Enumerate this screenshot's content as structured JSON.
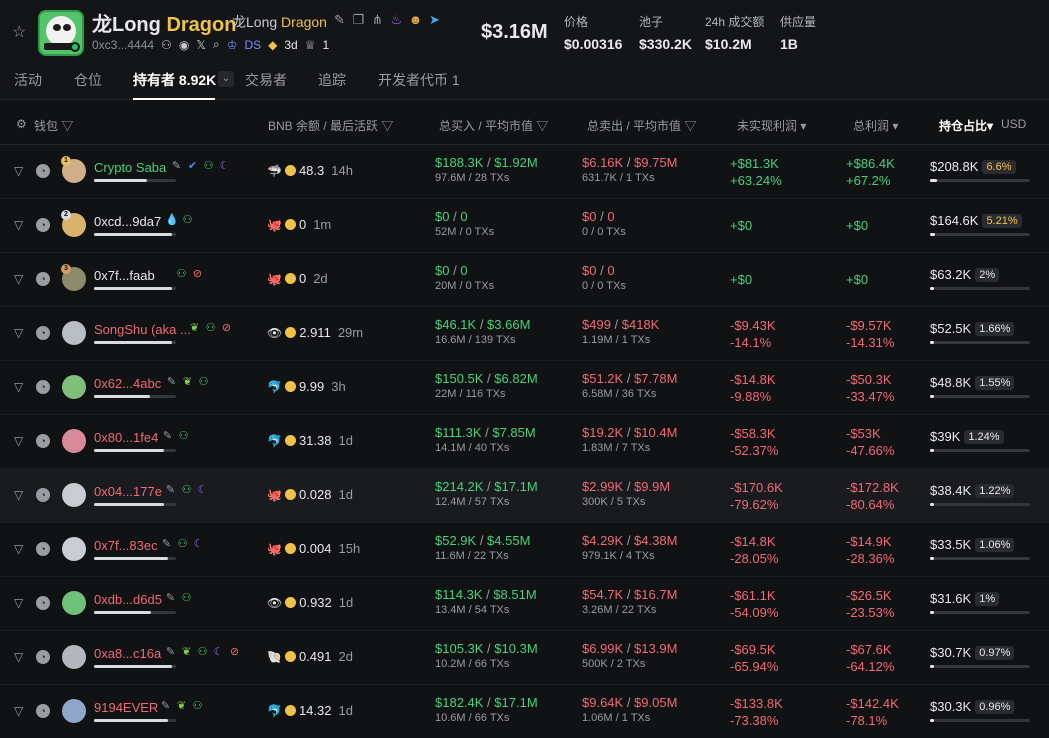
{
  "token": {
    "name_main": "龙Long",
    "symbol_main": "Dragon",
    "name_sub": "龙Long",
    "symbol_sub": "Dragon",
    "address": "0xc3...4444",
    "ds_label": "DS",
    "age": "3d",
    "holder_badge_count": "1",
    "market_cap": "$3.16M"
  },
  "stats": [
    {
      "label": "价格",
      "value": "$0.00316"
    },
    {
      "label": "池子",
      "value": "$330.2K"
    },
    {
      "label": "24h 成交额",
      "value": "$10.2M"
    },
    {
      "label": "供应量",
      "value": "1B"
    }
  ],
  "tabs": {
    "activity": "活动",
    "positions": "仓位",
    "holders": "持有者 8.92K",
    "traders": "交易者",
    "tracking": "追踪",
    "dev_tokens": "开发者代币 1"
  },
  "columns": {
    "wallet": "钱包",
    "bnb": "BNB 余额 / 最后活跃",
    "bought": "总买入 / 平均市值",
    "sold": "总卖出 / 平均市值",
    "unrealized": "未实现利润",
    "pnl": "总利润",
    "holding": "持仓占比",
    "currency": "USD"
  },
  "rows": [
    {
      "name": "Crypto Saba",
      "rank": "1",
      "bnb": "48.3",
      "ago": "14h",
      "buy": "$188.3K",
      "buy_avg": "$1.92M",
      "buy_sub": "97.6M / 28 TXs",
      "sell": "$6.16K",
      "sell_avg": "$9.75M",
      "sell_sub": "631.7K / 1 TXs",
      "unreal": "+$81.3K",
      "unreal_pct": "+63.24%",
      "pnl": "+$86.4K",
      "pnl_pct": "+67.2%",
      "hold_usd": "$208.8K",
      "hold_pct": "6.6%"
    },
    {
      "name": "0xcd...9da7",
      "rank": "2",
      "bnb": "0",
      "ago": "1m",
      "buy": "$0",
      "buy_avg": "0",
      "buy_sub": "52M / 0 TXs",
      "sell": "$0",
      "sell_avg": "0",
      "sell_sub": "0 / 0 TXs",
      "unreal": "+$0",
      "unreal_pct": "",
      "pnl": "+$0",
      "pnl_pct": "",
      "hold_usd": "$164.6K",
      "hold_pct": "5.21%"
    },
    {
      "name": "0x7f...faab",
      "rank": "3",
      "bnb": "0",
      "ago": "2d",
      "buy": "$0",
      "buy_avg": "0",
      "buy_sub": "20M / 0 TXs",
      "sell": "$0",
      "sell_avg": "0",
      "sell_sub": "0 / 0 TXs",
      "unreal": "+$0",
      "unreal_pct": "",
      "pnl": "+$0",
      "pnl_pct": "",
      "hold_usd": "$63.2K",
      "hold_pct": "2%"
    },
    {
      "name": "SongShu (aka ...",
      "rank": "",
      "bnb": "2.911",
      "ago": "29m",
      "buy": "$46.1K",
      "buy_avg": "$3.66M",
      "buy_sub": "16.6M / 139 TXs",
      "sell": "$499",
      "sell_avg": "$418K",
      "sell_sub": "1.19M / 1 TXs",
      "unreal": "-$9.43K",
      "unreal_pct": "-14.1%",
      "pnl": "-$9.57K",
      "pnl_pct": "-14.31%",
      "hold_usd": "$52.5K",
      "hold_pct": "1.66%"
    },
    {
      "name": "0x62...4abc",
      "rank": "",
      "bnb": "9.99",
      "ago": "3h",
      "buy": "$150.5K",
      "buy_avg": "$6.82M",
      "buy_sub": "22M / 116 TXs",
      "sell": "$51.2K",
      "sell_avg": "$7.78M",
      "sell_sub": "6.58M / 36 TXs",
      "unreal": "-$14.8K",
      "unreal_pct": "-9.88%",
      "pnl": "-$50.3K",
      "pnl_pct": "-33.47%",
      "hold_usd": "$48.8K",
      "hold_pct": "1.55%"
    },
    {
      "name": "0x80...1fe4",
      "rank": "",
      "bnb": "31.38",
      "ago": "1d",
      "buy": "$111.3K",
      "buy_avg": "$7.85M",
      "buy_sub": "14.1M / 40 TXs",
      "sell": "$19.2K",
      "sell_avg": "$10.4M",
      "sell_sub": "1.83M / 7 TXs",
      "unreal": "-$58.3K",
      "unreal_pct": "-52.37%",
      "pnl": "-$53K",
      "pnl_pct": "-47.66%",
      "hold_usd": "$39K",
      "hold_pct": "1.24%"
    },
    {
      "name": "0x04...177e",
      "rank": "",
      "bnb": "0.028",
      "ago": "1d",
      "buy": "$214.2K",
      "buy_avg": "$17.1M",
      "buy_sub": "12.4M / 57 TXs",
      "sell": "$2.99K",
      "sell_avg": "$9.9M",
      "sell_sub": "300K / 5 TXs",
      "unreal": "-$170.6K",
      "unreal_pct": "-79.62%",
      "pnl": "-$172.8K",
      "pnl_pct": "-80.64%",
      "hold_usd": "$38.4K",
      "hold_pct": "1.22%"
    },
    {
      "name": "0x7f...83ec",
      "rank": "",
      "bnb": "0.004",
      "ago": "15h",
      "buy": "$52.9K",
      "buy_avg": "$4.55M",
      "buy_sub": "11.6M / 22 TXs",
      "sell": "$4.29K",
      "sell_avg": "$4.38M",
      "sell_sub": "979.1K / 4 TXs",
      "unreal": "-$14.8K",
      "unreal_pct": "-28.05%",
      "pnl": "-$14.9K",
      "pnl_pct": "-28.36%",
      "hold_usd": "$33.5K",
      "hold_pct": "1.06%"
    },
    {
      "name": "0xdb...d6d5",
      "rank": "",
      "bnb": "0.932",
      "ago": "1d",
      "buy": "$114.3K",
      "buy_avg": "$8.51M",
      "buy_sub": "13.4M / 54 TXs",
      "sell": "$54.7K",
      "sell_avg": "$16.7M",
      "sell_sub": "3.26M / 22 TXs",
      "unreal": "-$61.1K",
      "unreal_pct": "-54.09%",
      "pnl": "-$26.5K",
      "pnl_pct": "-23.53%",
      "hold_usd": "$31.6K",
      "hold_pct": "1%"
    },
    {
      "name": "0xa8...c16a",
      "rank": "",
      "bnb": "0.491",
      "ago": "2d",
      "buy": "$105.3K",
      "buy_avg": "$10.3M",
      "buy_sub": "10.2M / 66 TXs",
      "sell": "$6.99K",
      "sell_avg": "$13.9M",
      "sell_sub": "500K / 2 TXs",
      "unreal": "-$69.5K",
      "unreal_pct": "-65.94%",
      "pnl": "-$67.6K",
      "pnl_pct": "-64.12%",
      "hold_usd": "$30.7K",
      "hold_pct": "0.97%"
    },
    {
      "name": "9194EVER",
      "rank": "",
      "bnb": "14.32",
      "ago": "1d",
      "buy": "$182.4K",
      "buy_avg": "$17.1M",
      "buy_sub": "10.6M / 66 TXs",
      "sell": "$9.64K",
      "sell_avg": "$9.05M",
      "sell_sub": "1.06M / 1 TXs",
      "unreal": "-$133.8K",
      "unreal_pct": "-73.38%",
      "pnl": "-$142.4K",
      "pnl_pct": "-78.1%",
      "hold_usd": "$30.3K",
      "hold_pct": "0.96%"
    }
  ],
  "colors": {
    "background": "#111214",
    "positive": "#49d17d",
    "negative": "#f06a78",
    "accent_gold": "#f0c24a"
  }
}
